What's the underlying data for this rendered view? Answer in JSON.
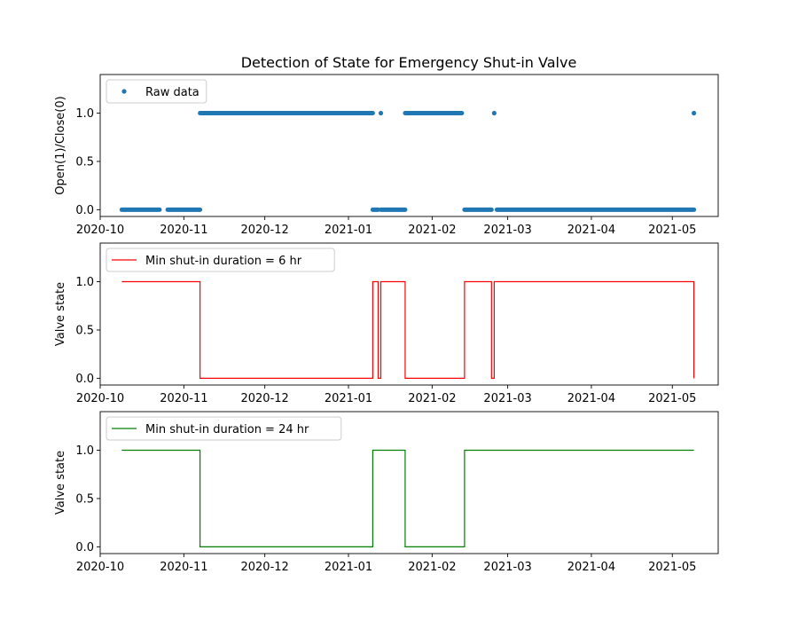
{
  "chart_data": [
    {
      "type": "scatter",
      "title": "Detection of State for Emergency Shut-in Valve",
      "xlabel": "",
      "ylabel": "Open(1)/Close(0)",
      "xlim": [
        "2020-10-01",
        "2021-05-18"
      ],
      "ylim": [
        -0.07,
        1.4
      ],
      "xticks": [
        "2020-10",
        "2020-11",
        "2020-12",
        "2021-01",
        "2021-02",
        "2021-03",
        "2021-04",
        "2021-05"
      ],
      "yticks": [
        "0.0",
        "0.5",
        "1.0"
      ],
      "legend": "top-left",
      "series": [
        {
          "name": "Raw data",
          "color": "#1f77b4",
          "marker": "dot",
          "segments": [
            {
              "start": "2020-10-09",
              "end": "2020-10-23",
              "value": 0
            },
            {
              "start": "2020-10-26",
              "end": "2020-11-07",
              "value": 0
            },
            {
              "start": "2020-11-07",
              "end": "2021-01-10",
              "value": 1
            },
            {
              "start": "2021-01-10",
              "end": "2021-01-12",
              "value": 0
            },
            {
              "start": "2021-01-13",
              "end": "2021-01-13",
              "value": 1
            },
            {
              "start": "2021-01-13",
              "end": "2021-01-22",
              "value": 0
            },
            {
              "start": "2021-01-22",
              "end": "2021-02-12",
              "value": 1
            },
            {
              "start": "2021-02-13",
              "end": "2021-02-23",
              "value": 0
            },
            {
              "start": "2021-02-24",
              "end": "2021-02-24",
              "value": 1
            },
            {
              "start": "2021-02-25",
              "end": "2021-05-09",
              "value": 0
            },
            {
              "start": "2021-05-09",
              "end": "2021-05-09",
              "value": 1
            }
          ]
        }
      ]
    },
    {
      "type": "line",
      "title": "",
      "xlabel": "",
      "ylabel": "Valve state",
      "xlim": [
        "2020-10-01",
        "2021-05-18"
      ],
      "ylim": [
        -0.07,
        1.4
      ],
      "xticks": [
        "2020-10",
        "2020-11",
        "2020-12",
        "2021-01",
        "2021-02",
        "2021-03",
        "2021-04",
        "2021-05"
      ],
      "yticks": [
        "0.0",
        "0.5",
        "1.0"
      ],
      "legend": "top-left",
      "step": true,
      "series": [
        {
          "name": "Min shut-in duration = 6 hr",
          "color": "#ff0000",
          "points": [
            [
              "2020-10-09",
              1
            ],
            [
              "2020-11-07",
              0
            ],
            [
              "2021-01-10",
              1
            ],
            [
              "2021-01-12",
              0
            ],
            [
              "2021-01-13",
              1
            ],
            [
              "2021-01-22",
              0
            ],
            [
              "2021-02-13",
              1
            ],
            [
              "2021-02-23",
              0
            ],
            [
              "2021-02-24",
              1
            ],
            [
              "2021-05-09",
              0
            ]
          ]
        }
      ]
    },
    {
      "type": "line",
      "title": "",
      "xlabel": "",
      "ylabel": "Valve state",
      "xlim": [
        "2020-10-01",
        "2021-05-18"
      ],
      "ylim": [
        -0.07,
        1.4
      ],
      "xticks": [
        "2020-10",
        "2020-11",
        "2020-12",
        "2021-01",
        "2021-02",
        "2021-03",
        "2021-04",
        "2021-05"
      ],
      "yticks": [
        "0.0",
        "0.5",
        "1.0"
      ],
      "legend": "top-left",
      "step": true,
      "series": [
        {
          "name": "Min shut-in duration = 24 hr",
          "color": "#008000",
          "points": [
            [
              "2020-10-09",
              1
            ],
            [
              "2020-11-07",
              0
            ],
            [
              "2021-01-10",
              1
            ],
            [
              "2021-01-22",
              0
            ],
            [
              "2021-02-13",
              1
            ],
            [
              "2021-05-09",
              1
            ]
          ]
        }
      ]
    }
  ]
}
